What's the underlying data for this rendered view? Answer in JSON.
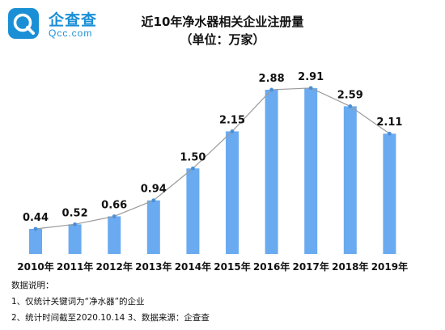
{
  "logo": {
    "text_cn": "企查查",
    "text_en": "Qcc.com",
    "icon": "magnifier-q-icon",
    "color": "#1a8fd6"
  },
  "chart_data": {
    "type": "bar",
    "title": "近10年净水器相关企业注册量",
    "subtitle": "（单位：万家）",
    "categories": [
      "2010年",
      "2011年",
      "2012年",
      "2013年",
      "2014年",
      "2015年",
      "2016年",
      "2017年",
      "2018年",
      "2019年"
    ],
    "values": [
      0.44,
      0.52,
      0.66,
      0.94,
      1.5,
      2.15,
      2.88,
      2.91,
      2.59,
      2.11
    ],
    "value_labels": [
      "0.44",
      "0.52",
      "0.66",
      "0.94",
      "1.50",
      "2.15",
      "2.88",
      "2.91",
      "2.59",
      "2.11"
    ],
    "trend_line": true,
    "ylim": [
      0,
      3.2
    ],
    "bar_color": "#6aaaf0",
    "line_color": "#9a9a9a",
    "marker_color": "#4a8fd8"
  },
  "notes": {
    "heading": "数据说明：",
    "line1": "1、仅统计关键词为“净水器”的企业",
    "line2": "2、统计时间截至2020.10.14   3、数据来源：企查查"
  }
}
